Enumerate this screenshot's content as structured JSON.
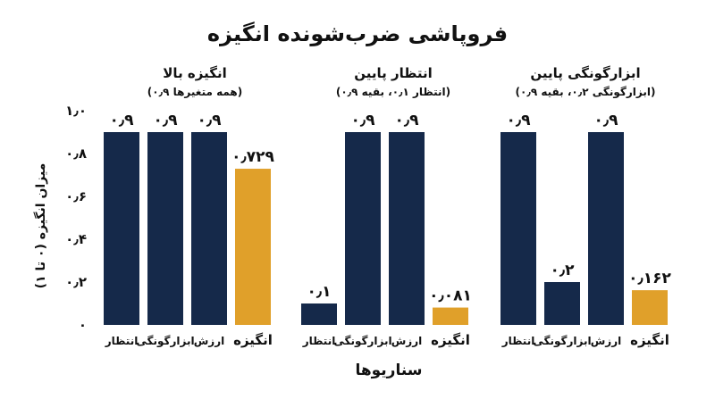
{
  "chart_data": {
    "type": "bar",
    "title": "فروپاشی ضرب‌شونده انگیزه",
    "xlabel": "سناریوها",
    "ylabel": "میزان انگیزه (۰ تا ۱)",
    "ylim": [
      0,
      1
    ],
    "yticks": [
      {
        "value": 0,
        "label": "۰"
      },
      {
        "value": 0.2,
        "label": "۰٫۲"
      },
      {
        "value": 0.4,
        "label": "۰٫۴"
      },
      {
        "value": 0.6,
        "label": "۰٫۶"
      },
      {
        "value": 0.8,
        "label": "۰٫۸"
      },
      {
        "value": 1.0,
        "label": "۱٫۰"
      }
    ],
    "grid": false,
    "legend": "none",
    "colors": {
      "factor": "#15294a",
      "result": "#e0a02a"
    },
    "panels": [
      {
        "title": "انگیزه بالا",
        "subtitle": "(همه متغیرها ۰٫۹)",
        "categories": [
          "انتظار",
          "ابزارگونگی",
          "ارزش",
          "انگیزه"
        ],
        "values": [
          0.9,
          0.9,
          0.9,
          0.729
        ],
        "value_labels": [
          "۰٫۹",
          "۰٫۹",
          "۰٫۹",
          "۰٫۷۲۹"
        ],
        "kinds": [
          "factor",
          "factor",
          "factor",
          "result"
        ]
      },
      {
        "title": "انتظار پایین",
        "subtitle": "(انتظار ۰٫۱، بقیه ۰٫۹)",
        "categories": [
          "انتظار",
          "ابزارگونگی",
          "ارزش",
          "انگیزه"
        ],
        "values": [
          0.1,
          0.9,
          0.9,
          0.081
        ],
        "value_labels": [
          "۰٫۱",
          "۰٫۹",
          "۰٫۹",
          "۰٫۰۸۱"
        ],
        "kinds": [
          "factor",
          "factor",
          "factor",
          "result"
        ]
      },
      {
        "title": "ابزارگونگی پایین",
        "subtitle": "(ابزارگونگی ۰٫۲، بقیه ۰٫۹)",
        "categories": [
          "انتظار",
          "ابزارگونگی",
          "ارزش",
          "انگیزه"
        ],
        "values": [
          0.9,
          0.2,
          0.9,
          0.162
        ],
        "value_labels": [
          "۰٫۹",
          "۰٫۲",
          "۰٫۹",
          "۰٫۱۶۲"
        ],
        "kinds": [
          "factor",
          "factor",
          "factor",
          "result"
        ]
      }
    ]
  }
}
